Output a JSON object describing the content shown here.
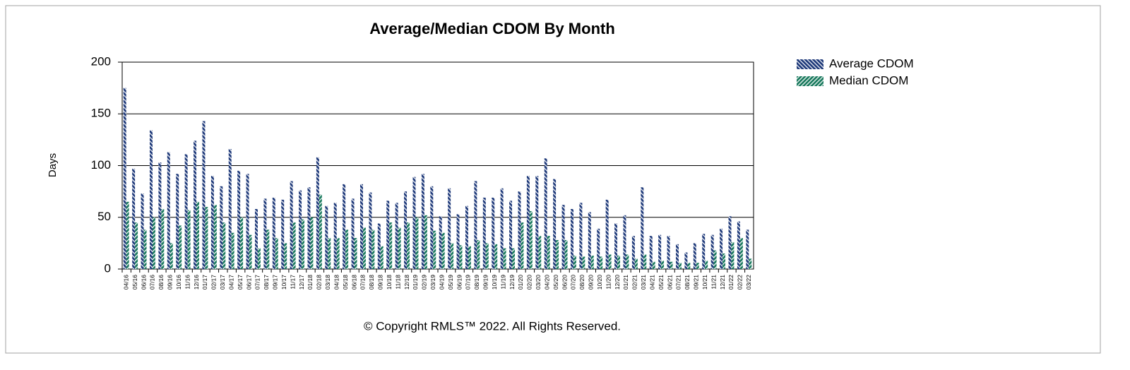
{
  "chart_data": {
    "type": "bar",
    "title": "Average/Median CDOM By Month",
    "y_label": "Days",
    "copyright": "© Copyright RMLS™ 2022.  All Rights Reserved.",
    "categories": [
      "04/16",
      "05/16",
      "06/16",
      "07/16",
      "08/16",
      "09/16",
      "10/16",
      "11/16",
      "12/16",
      "01/17",
      "02/17",
      "03/17",
      "04/17",
      "05/17",
      "06/17",
      "07/17",
      "08/17",
      "09/17",
      "10/17",
      "11/17",
      "12/17",
      "01/18",
      "02/18",
      "03/18",
      "04/18",
      "05/18",
      "06/18",
      "07/18",
      "08/18",
      "09/18",
      "10/18",
      "11/18",
      "12/18",
      "01/19",
      "02/19",
      "03/19",
      "04/19",
      "05/19",
      "06/19",
      "07/19",
      "08/19",
      "09/19",
      "10/19",
      "11/19",
      "12/19",
      "01/20",
      "02/20",
      "03/20",
      "04/20",
      "05/20",
      "06/20",
      "07/20",
      "08/20",
      "09/20",
      "10/20",
      "11/20",
      "12/20",
      "01/21",
      "02/21",
      "03/21",
      "04/21",
      "05/21",
      "06/21",
      "07/21",
      "08/21",
      "09/21",
      "10/21",
      "11/21",
      "12/21",
      "01/22",
      "02/22",
      "03/22"
    ],
    "series": [
      {
        "name": "Average CDOM",
        "color": "#1f3a7a",
        "values": [
          175,
          97,
          73,
          134,
          103,
          113,
          92,
          111,
          124,
          143,
          90,
          80,
          116,
          95,
          92,
          58,
          68,
          69,
          67,
          85,
          76,
          79,
          108,
          61,
          64,
          82,
          68,
          82,
          74,
          44,
          66,
          64,
          75,
          89,
          92,
          80,
          51,
          78,
          53,
          61,
          85,
          69,
          69,
          78,
          66,
          75,
          90,
          90,
          107,
          87,
          62,
          58,
          64,
          55,
          39,
          67,
          44,
          52,
          32,
          79,
          32,
          33,
          32,
          24,
          16,
          25,
          34,
          33,
          39,
          51,
          46,
          38
        ]
      },
      {
        "name": "Median CDOM",
        "color": "#1a7a5e",
        "values": [
          65,
          45,
          38,
          50,
          58,
          25,
          42,
          57,
          65,
          60,
          62,
          45,
          35,
          50,
          33,
          20,
          38,
          30,
          25,
          45,
          48,
          50,
          72,
          30,
          30,
          38,
          30,
          40,
          38,
          22,
          45,
          40,
          45,
          50,
          52,
          37,
          35,
          25,
          23,
          22,
          28,
          25,
          24,
          20,
          20,
          45,
          56,
          32,
          32,
          28,
          28,
          13,
          12,
          13,
          12,
          14,
          13,
          14,
          10,
          14,
          7,
          8,
          7,
          6,
          6,
          6,
          8,
          18,
          15,
          26,
          30,
          10
        ]
      }
    ],
    "ylim": [
      0,
      200
    ],
    "yticks": [
      0,
      50,
      100,
      150,
      200
    ],
    "grid": true,
    "legend": "right"
  }
}
